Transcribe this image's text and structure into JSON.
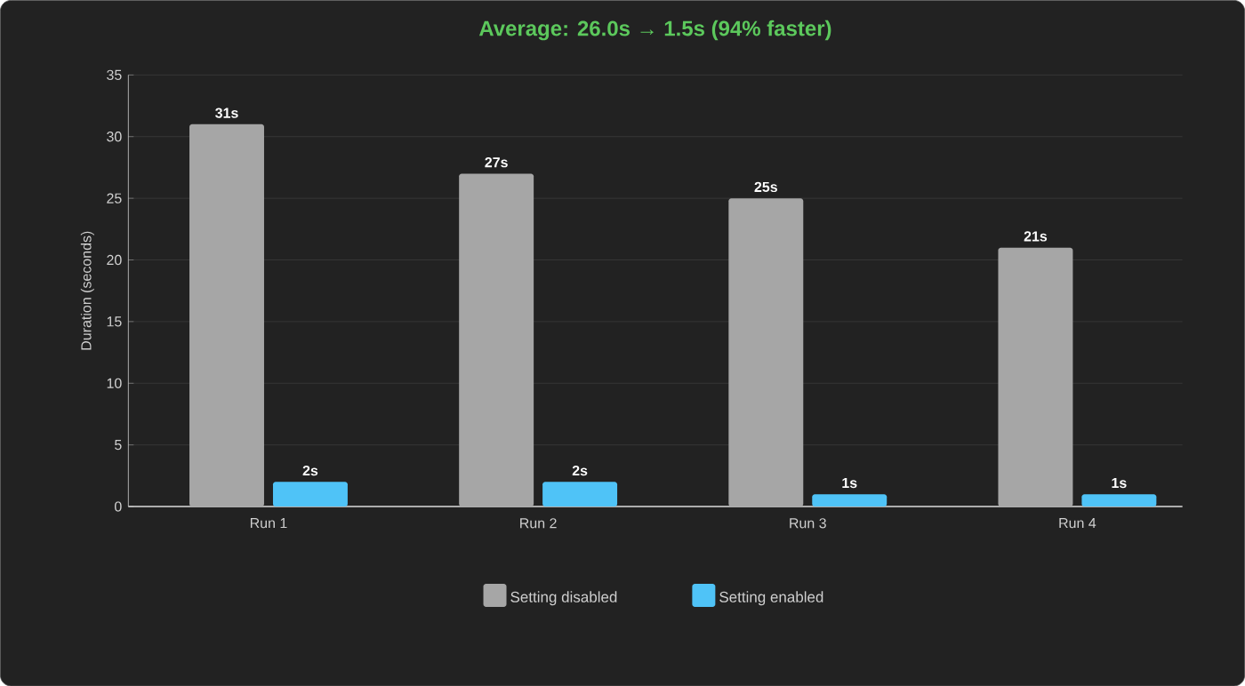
{
  "chart_data": {
    "type": "bar",
    "title": "Average: 26.0s → 1.5s (94% faster)",
    "ylabel": "Duration (seconds)",
    "categories": [
      "Run 1",
      "Run 2",
      "Run 3",
      "Run 4"
    ],
    "series": [
      {
        "name": "Setting disabled",
        "color": "#a6a6a6",
        "values": [
          31,
          27,
          25,
          21
        ],
        "value_labels": [
          "31s",
          "27s",
          "25s",
          "21s"
        ]
      },
      {
        "name": "Setting enabled",
        "color": "#4fc3f7",
        "values": [
          2,
          2,
          1,
          1
        ],
        "value_labels": [
          "2s",
          "2s",
          "1s",
          "1s"
        ]
      }
    ],
    "ylim": [
      0,
      35
    ],
    "yticks": [
      0,
      5,
      10,
      15,
      20,
      25,
      30,
      35
    ],
    "grid": "y",
    "legend": "bottom"
  }
}
